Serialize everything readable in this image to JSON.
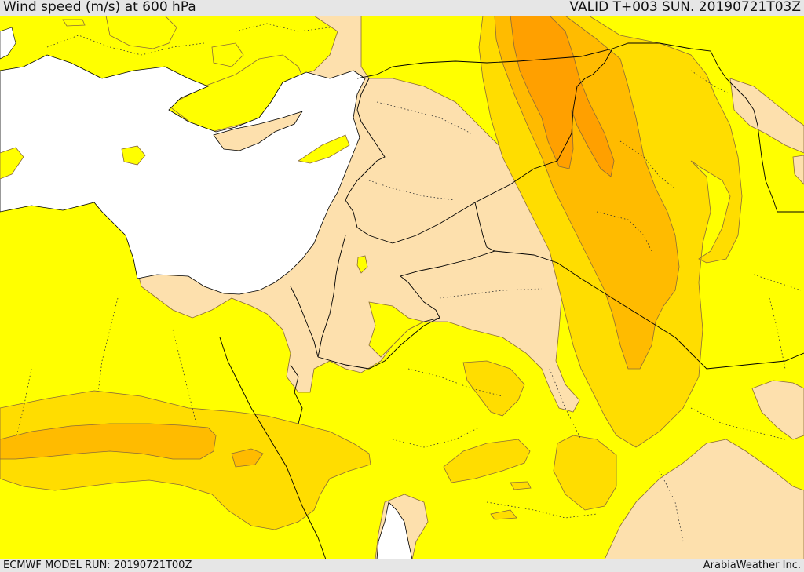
{
  "header": {
    "title": "Wind speed (m/s) at 600 hPa",
    "valid": "VALID T+003 SUN. 20190721T03Z"
  },
  "footer": {
    "model_run": "ECMWF MODEL RUN: 20190721T00Z",
    "credit": "ArabiaWeather Inc."
  },
  "colors": {
    "sea": "#ffffff",
    "band_lowest": "#fde0ad",
    "band_low": "#ffff00",
    "band_mid": "#ffdd00",
    "band_high": "#ffbb00",
    "band_highest": "#ffa000",
    "borders": "#000000"
  }
}
